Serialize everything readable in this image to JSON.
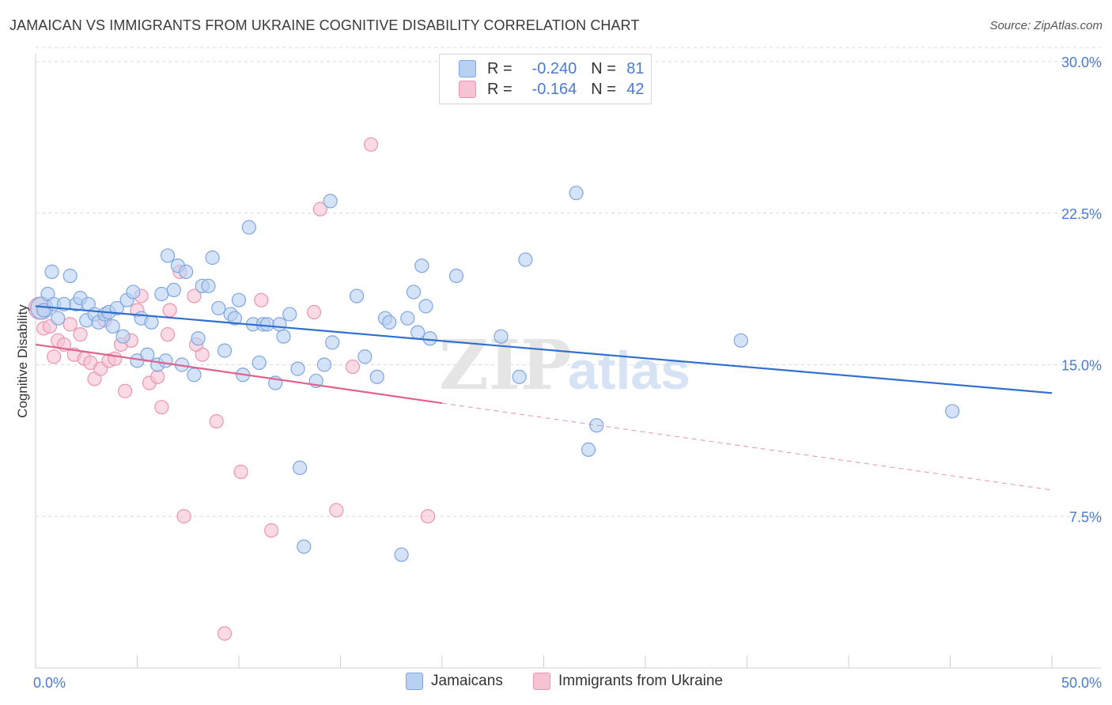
{
  "title": "JAMAICAN VS IMMIGRANTS FROM UKRAINE COGNITIVE DISABILITY CORRELATION CHART",
  "source": "Source: ZipAtlas.com",
  "watermark": {
    "zip": "ZIP",
    "atlas": "atlas"
  },
  "legend_top": {
    "r_label": "R =",
    "n_label": "N =",
    "rows": [
      {
        "r": "-0.240",
        "n": "81"
      },
      {
        "r": "-0.164",
        "n": "42"
      }
    ]
  },
  "bottom_legend": [
    "Jamaicans",
    "Immigrants from Ukraine"
  ],
  "colors": {
    "blue_fill": "#b8d0f2",
    "blue_stroke": "#7ea6e0",
    "blue_line": "#2f6fcf",
    "pink_fill": "#f7c3d3",
    "pink_stroke": "#eb94b2",
    "pink_line": "#e0628f",
    "axis_text": "#4a7bd0",
    "grid": "#d9d9d9"
  },
  "chart_data": {
    "type": "scatter",
    "title": "JAMAICAN VS IMMIGRANTS FROM UKRAINE COGNITIVE DISABILITY CORRELATION CHART",
    "xlabel": "",
    "ylabel": "Cognitive Disability",
    "xlim": [
      0,
      50
    ],
    "ylim": [
      0,
      30
    ],
    "x_tick_labels": [
      "0.0%",
      "50.0%"
    ],
    "y_ticks": [
      7.5,
      15.0,
      22.5,
      30.0
    ],
    "y_tick_labels": [
      "7.5%",
      "15.0%",
      "22.5%",
      "30.0%"
    ],
    "grid": "horizontal dashed",
    "legend_placement": "top-center",
    "series": [
      {
        "name": "Jamaicans",
        "r": -0.24,
        "n": 81,
        "trend": {
          "x": [
            0,
            50
          ],
          "y": [
            17.9,
            13.6
          ]
        },
        "points": [
          [
            0.3,
            17.8,
            "L"
          ],
          [
            0.4,
            17.7
          ],
          [
            0.6,
            18.5
          ],
          [
            0.8,
            19.6
          ],
          [
            0.9,
            18.0
          ],
          [
            1.1,
            17.3
          ],
          [
            1.4,
            18.0
          ],
          [
            1.7,
            19.4
          ],
          [
            2.0,
            18.0
          ],
          [
            2.2,
            18.3
          ],
          [
            2.5,
            17.2
          ],
          [
            2.6,
            18.0
          ],
          [
            2.9,
            17.5
          ],
          [
            3.1,
            17.1
          ],
          [
            3.4,
            17.5
          ],
          [
            3.6,
            17.6
          ],
          [
            3.8,
            16.9
          ],
          [
            4.0,
            17.8
          ],
          [
            4.3,
            16.4
          ],
          [
            4.5,
            18.2
          ],
          [
            4.8,
            18.6
          ],
          [
            5.0,
            15.2
          ],
          [
            5.2,
            17.3
          ],
          [
            5.5,
            15.5
          ],
          [
            5.7,
            17.1
          ],
          [
            6.0,
            15.0
          ],
          [
            6.2,
            18.5
          ],
          [
            6.4,
            15.2
          ],
          [
            6.5,
            20.4
          ],
          [
            6.8,
            18.7
          ],
          [
            7.0,
            19.9
          ],
          [
            7.2,
            15.0
          ],
          [
            7.4,
            19.6
          ],
          [
            7.8,
            14.5
          ],
          [
            8.0,
            16.3
          ],
          [
            8.2,
            18.9
          ],
          [
            8.5,
            18.9
          ],
          [
            8.7,
            20.3
          ],
          [
            9.0,
            17.8
          ],
          [
            9.3,
            15.7
          ],
          [
            9.6,
            17.5
          ],
          [
            9.8,
            17.3
          ],
          [
            10.0,
            18.2
          ],
          [
            10.2,
            14.5
          ],
          [
            10.5,
            21.8
          ],
          [
            10.7,
            17.0
          ],
          [
            11.0,
            15.1
          ],
          [
            11.2,
            17.0
          ],
          [
            11.4,
            17.0
          ],
          [
            11.8,
            14.1
          ],
          [
            12.2,
            16.4
          ],
          [
            12.5,
            17.5
          ],
          [
            12.9,
            14.8
          ],
          [
            13.0,
            9.9
          ],
          [
            13.2,
            6.0
          ],
          [
            13.8,
            14.2
          ],
          [
            14.2,
            15.0
          ],
          [
            14.5,
            23.1
          ],
          [
            14.6,
            16.1
          ],
          [
            15.8,
            18.4
          ],
          [
            16.2,
            15.4
          ],
          [
            16.8,
            14.4
          ],
          [
            17.2,
            17.3
          ],
          [
            17.4,
            17.1
          ],
          [
            18.0,
            5.6
          ],
          [
            18.3,
            17.3
          ],
          [
            18.6,
            18.6
          ],
          [
            18.8,
            16.6
          ],
          [
            19.0,
            19.9
          ],
          [
            19.2,
            17.9
          ],
          [
            19.4,
            16.3
          ],
          [
            20.7,
            19.4
          ],
          [
            22.9,
            16.4
          ],
          [
            23.8,
            14.4
          ],
          [
            24.1,
            20.2
          ],
          [
            26.6,
            23.5
          ],
          [
            27.2,
            10.8
          ],
          [
            27.6,
            12.0
          ],
          [
            34.7,
            16.2
          ],
          [
            45.1,
            12.7
          ],
          [
            12.0,
            17.0
          ]
        ]
      },
      {
        "name": "Immigrants from Ukraine",
        "r": -0.164,
        "n": 42,
        "trend": {
          "x": [
            0,
            20
          ],
          "y": [
            16.0,
            13.1
          ]
        },
        "trend_dashed": {
          "x": [
            20,
            50
          ],
          "y": [
            13.1,
            8.8
          ]
        },
        "points": [
          [
            0.2,
            17.8,
            "L"
          ],
          [
            0.4,
            16.8
          ],
          [
            0.7,
            16.9
          ],
          [
            0.9,
            15.4
          ],
          [
            1.1,
            16.2
          ],
          [
            1.4,
            16.0
          ],
          [
            1.7,
            17.0
          ],
          [
            1.9,
            15.5
          ],
          [
            2.2,
            16.5
          ],
          [
            2.4,
            15.3
          ],
          [
            2.7,
            15.1
          ],
          [
            2.9,
            14.3
          ],
          [
            3.2,
            14.8
          ],
          [
            3.4,
            17.2
          ],
          [
            3.6,
            15.2
          ],
          [
            3.9,
            15.3
          ],
          [
            4.2,
            16.0
          ],
          [
            4.4,
            13.7
          ],
          [
            4.7,
            16.2
          ],
          [
            5.0,
            17.7
          ],
          [
            5.2,
            18.4
          ],
          [
            5.6,
            14.1
          ],
          [
            6.0,
            14.4
          ],
          [
            6.2,
            12.9
          ],
          [
            6.5,
            16.5
          ],
          [
            6.6,
            17.7
          ],
          [
            7.1,
            19.6
          ],
          [
            7.3,
            7.5
          ],
          [
            7.8,
            18.4
          ],
          [
            8.2,
            15.5
          ],
          [
            8.9,
            12.2
          ],
          [
            9.3,
            1.7
          ],
          [
            10.1,
            9.7
          ],
          [
            11.1,
            18.2
          ],
          [
            11.6,
            6.8
          ],
          [
            13.7,
            17.6
          ],
          [
            14.0,
            22.7
          ],
          [
            14.8,
            7.8
          ],
          [
            15.6,
            14.9
          ],
          [
            16.5,
            25.9
          ],
          [
            19.3,
            7.5
          ],
          [
            7.9,
            16.0
          ]
        ]
      }
    ]
  }
}
